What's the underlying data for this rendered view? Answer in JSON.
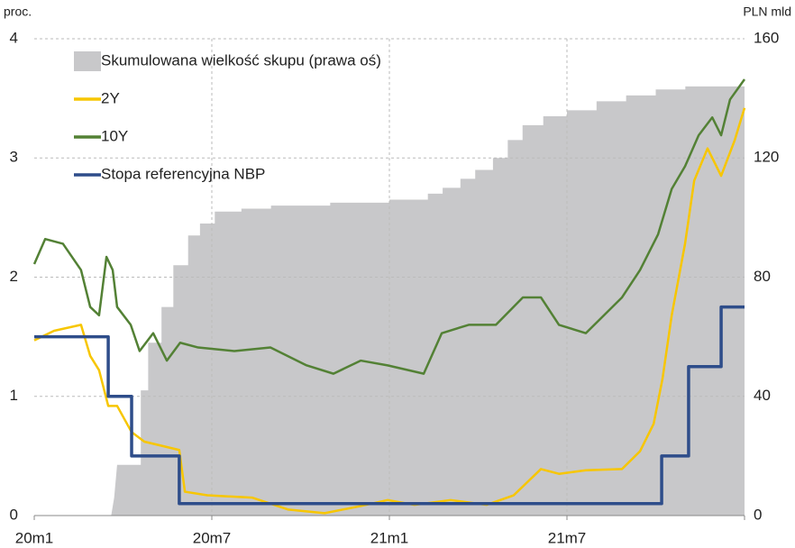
{
  "chart_data": {
    "type": "line",
    "y_label": "proc.",
    "y2_label": "PLN mld",
    "xlim": [
      0,
      24
    ],
    "xticks": [
      {
        "value": 0,
        "label": "20m1"
      },
      {
        "value": 6,
        "label": "20m7"
      },
      {
        "value": 12,
        "label": "21m1"
      },
      {
        "value": 18,
        "label": "21m7"
      },
      24
    ],
    "ylim": [
      0,
      4
    ],
    "yticks": [
      0,
      1,
      2,
      3,
      4
    ],
    "y2lim": [
      0,
      160
    ],
    "y2ticks": [
      0,
      40,
      80,
      120,
      160
    ],
    "grid": true,
    "legend": "upper left",
    "series": [
      {
        "name": "Skumulowana wielkość skupu (prawa oś)",
        "type": "area",
        "axis": "y2",
        "color": "#c8c8ca",
        "x": [
          0,
          2.6,
          2.7,
          2.8,
          3.6,
          3.6,
          3.85,
          3.85,
          4.3,
          4.3,
          4.7,
          4.7,
          5.2,
          5.2,
          5.6,
          5.6,
          6.1,
          6.1,
          7,
          7,
          8,
          8,
          10,
          10,
          12,
          12,
          13.3,
          13.3,
          13.8,
          13.8,
          14.4,
          14.4,
          14.9,
          14.9,
          15.5,
          15.5,
          16,
          16,
          16.5,
          16.5,
          17.2,
          17.2,
          18,
          18,
          19,
          19,
          20,
          20,
          21,
          21,
          22,
          22,
          24
        ],
        "values": [
          0,
          0,
          6,
          17,
          17,
          42,
          42,
          58,
          58,
          70,
          70,
          84,
          84,
          94,
          94,
          98,
          98,
          102,
          102,
          103,
          103,
          104,
          104,
          105,
          105,
          106,
          106,
          108,
          108,
          110,
          110,
          113,
          113,
          116,
          116,
          120,
          120,
          126,
          126,
          131,
          131,
          134,
          134,
          136,
          136,
          139,
          139,
          141,
          141,
          143,
          143,
          144,
          144
        ]
      },
      {
        "name": "2Y",
        "type": "line",
        "color": "#f7c600",
        "x": [
          0,
          0.67,
          1.58,
          1.89,
          2.19,
          2.5,
          2.8,
          3.29,
          3.72,
          4.9,
          5.09,
          5.85,
          7.37,
          8.59,
          9.81,
          11.03,
          11.94,
          12.85,
          14.07,
          15.29,
          16.2,
          17.12,
          17.73,
          18.64,
          19.86,
          20.47,
          20.93,
          21.23,
          21.54,
          21.99,
          22.3,
          22.75,
          23.21,
          23.67,
          24
        ],
        "values": [
          1.47,
          1.55,
          1.6,
          1.34,
          1.22,
          0.92,
          0.92,
          0.7,
          0.62,
          0.55,
          0.2,
          0.17,
          0.15,
          0.05,
          0.02,
          0.08,
          0.13,
          0.09,
          0.13,
          0.09,
          0.17,
          0.39,
          0.35,
          0.38,
          0.39,
          0.54,
          0.77,
          1.15,
          1.68,
          2.28,
          2.81,
          3.08,
          2.85,
          3.15,
          3.42
        ]
      },
      {
        "name": "10Y",
        "type": "line",
        "color": "#538135",
        "x": [
          0,
          0.37,
          0.97,
          1.58,
          1.89,
          2.19,
          2.44,
          2.65,
          2.8,
          3.26,
          3.56,
          4.02,
          4.48,
          4.93,
          5.54,
          6.76,
          7.98,
          9.2,
          10.11,
          11.03,
          11.94,
          13.16,
          13.77,
          14.68,
          15.6,
          16.51,
          17.12,
          17.73,
          18.64,
          19.86,
          20.47,
          21.08,
          21.54,
          21.99,
          22.45,
          22.91,
          23.21,
          23.51,
          24
        ],
        "values": [
          2.11,
          2.32,
          2.28,
          2.06,
          1.75,
          1.68,
          2.17,
          2.06,
          1.75,
          1.6,
          1.38,
          1.53,
          1.3,
          1.45,
          1.41,
          1.38,
          1.41,
          1.26,
          1.19,
          1.3,
          1.26,
          1.19,
          1.53,
          1.6,
          1.6,
          1.83,
          1.83,
          1.6,
          1.53,
          1.83,
          2.06,
          2.36,
          2.74,
          2.93,
          3.19,
          3.34,
          3.19,
          3.49,
          3.66
        ]
      },
      {
        "name": "Stopa referencyjna NBP",
        "type": "line",
        "color": "#2e4d8a",
        "x": [
          0,
          2.5,
          2.5,
          3.29,
          3.29,
          4.9,
          4.9,
          21.2,
          21.2,
          22.11,
          22.11,
          23.21,
          23.21,
          24
        ],
        "values": [
          1.5,
          1.5,
          1.0,
          1.0,
          0.5,
          0.5,
          0.1,
          0.1,
          0.5,
          0.5,
          1.25,
          1.25,
          1.75,
          1.75
        ]
      }
    ]
  }
}
